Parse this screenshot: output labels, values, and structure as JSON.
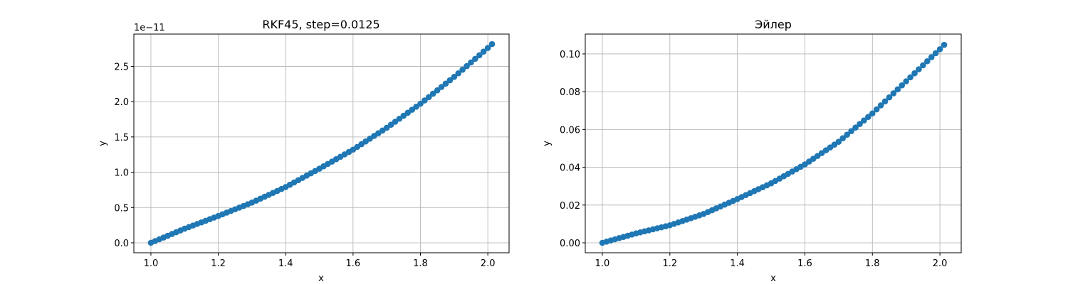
{
  "colors": {
    "series": "#1f77b4",
    "grid": "#b0b0b0",
    "axes": "#000000"
  },
  "chart_data": [
    {
      "type": "scatter",
      "title": "RKF45, step=0.0125",
      "xlabel": "x",
      "ylabel": "y",
      "offset_text": "1e−11",
      "grid": true,
      "xlim": [
        0.9494,
        2.0631
      ],
      "ylim": [
        -1.41e-12,
        2.957e-11
      ],
      "xticks": [
        1.0,
        1.2,
        1.4,
        1.6,
        1.8,
        2.0
      ],
      "xtick_labels": [
        "1.0",
        "1.2",
        "1.4",
        "1.6",
        "1.8",
        "2.0"
      ],
      "yticks": [
        0,
        5e-12,
        1e-11,
        1.5e-11,
        2e-11,
        2.5e-11
      ],
      "ytick_labels": [
        "0.0",
        "0.5",
        "1.0",
        "1.5",
        "2.0",
        "2.5"
      ],
      "x_range": [
        1.0,
        2.0125
      ],
      "x_step": 0.0125,
      "y_at_x": [
        [
          1.0,
          0.0
        ],
        [
          1.1,
          2e-12
        ],
        [
          1.2,
          3.8e-12
        ],
        [
          1.3,
          5.7e-12
        ],
        [
          1.4,
          7.9e-12
        ],
        [
          1.5,
          1.05e-11
        ],
        [
          1.6,
          1.32e-11
        ],
        [
          1.7,
          1.63e-11
        ],
        [
          1.8,
          1.97e-11
        ],
        [
          1.9,
          2.35e-11
        ],
        [
          2.0,
          2.76e-11
        ],
        [
          2.0125,
          2.815e-11
        ]
      ]
    },
    {
      "type": "scatter",
      "title": "Эйлер",
      "xlabel": "x",
      "ylabel": "y",
      "grid": true,
      "xlim": [
        0.9494,
        2.0631
      ],
      "ylim": [
        -0.00526,
        0.1105
      ],
      "xticks": [
        1.0,
        1.2,
        1.4,
        1.6,
        1.8,
        2.0
      ],
      "xtick_labels": [
        "1.0",
        "1.2",
        "1.4",
        "1.6",
        "1.8",
        "2.0"
      ],
      "yticks": [
        0,
        0.02,
        0.04,
        0.06,
        0.08,
        0.1
      ],
      "ytick_labels": [
        "0.00",
        "0.02",
        "0.04",
        "0.06",
        "0.08",
        "0.10"
      ],
      "x_range": [
        1.0,
        2.0125
      ],
      "x_step": 0.0125,
      "y_at_x": [
        [
          1.0,
          0.0
        ],
        [
          1.1,
          0.005
        ],
        [
          1.2,
          0.0093
        ],
        [
          1.3,
          0.0153
        ],
        [
          1.4,
          0.0232
        ],
        [
          1.5,
          0.0315
        ],
        [
          1.6,
          0.0415
        ],
        [
          1.7,
          0.0535
        ],
        [
          1.8,
          0.0685
        ],
        [
          1.9,
          0.0855
        ],
        [
          2.0,
          0.1025
        ],
        [
          2.0125,
          0.1048
        ]
      ]
    }
  ]
}
